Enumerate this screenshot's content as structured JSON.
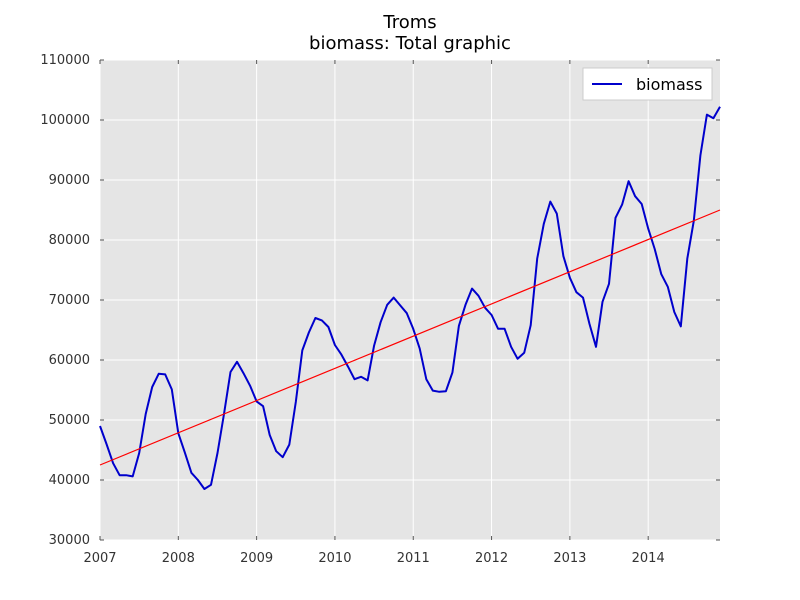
{
  "chart_data": {
    "type": "line",
    "title": "Troms",
    "subtitle": "biomass: Total graphic",
    "xlabel": "",
    "ylabel": "",
    "xlim": [
      2007.0,
      2014.917
    ],
    "ylim": [
      30000,
      110000
    ],
    "grid": true,
    "legend_position": "top-right",
    "x_ticks": [
      "2007",
      "2008",
      "2009",
      "2010",
      "2011",
      "2012",
      "2013",
      "2014"
    ],
    "y_ticks": [
      "30000",
      "40000",
      "50000",
      "60000",
      "70000",
      "80000",
      "90000",
      "100000",
      "110000"
    ],
    "colors": {
      "biomass": "#0000cc",
      "trend": "#ff0000",
      "plot_background": "#e5e5e5",
      "grid": "#ffffff"
    },
    "series": [
      {
        "name": "biomass",
        "x": [
          2007.0,
          2007.083,
          2007.167,
          2007.25,
          2007.333,
          2007.417,
          2007.5,
          2007.583,
          2007.667,
          2007.75,
          2007.833,
          2007.917,
          2008.0,
          2008.083,
          2008.167,
          2008.25,
          2008.333,
          2008.417,
          2008.5,
          2008.583,
          2008.667,
          2008.75,
          2008.833,
          2008.917,
          2009.0,
          2009.083,
          2009.167,
          2009.25,
          2009.333,
          2009.417,
          2009.5,
          2009.583,
          2009.667,
          2009.75,
          2009.833,
          2009.917,
          2010.0,
          2010.083,
          2010.167,
          2010.25,
          2010.333,
          2010.417,
          2010.5,
          2010.583,
          2010.667,
          2010.75,
          2010.833,
          2010.917,
          2011.0,
          2011.083,
          2011.167,
          2011.25,
          2011.333,
          2011.417,
          2011.5,
          2011.583,
          2011.667,
          2011.75,
          2011.833,
          2011.917,
          2012.0,
          2012.083,
          2012.167,
          2012.25,
          2012.333,
          2012.417,
          2012.5,
          2012.583,
          2012.667,
          2012.75,
          2012.833,
          2012.917,
          2013.0,
          2013.083,
          2013.167,
          2013.25,
          2013.333,
          2013.417,
          2013.5,
          2013.583,
          2013.667,
          2013.75,
          2013.833,
          2013.917,
          2014.0,
          2014.083,
          2014.167,
          2014.25,
          2014.333,
          2014.417,
          2014.5,
          2014.583,
          2014.667,
          2014.75,
          2014.833,
          2014.917
        ],
        "values": [
          49000,
          46000,
          42800,
          40800,
          40800,
          40600,
          44500,
          51000,
          55500,
          57700,
          57600,
          55100,
          47800,
          44600,
          41200,
          40000,
          38500,
          39200,
          44500,
          51000,
          58000,
          59700,
          57800,
          55700,
          53100,
          52300,
          47500,
          44800,
          43800,
          45900,
          53000,
          61600,
          64600,
          67000,
          66600,
          65500,
          62500,
          60900,
          58900,
          56800,
          57200,
          56600,
          62400,
          66300,
          69200,
          70400,
          69100,
          67800,
          65200,
          61900,
          56800,
          54900,
          54700,
          54800,
          57900,
          65700,
          69200,
          71900,
          70700,
          68700,
          67500,
          65200,
          65200,
          62200,
          60200,
          61200,
          65800,
          76900,
          82700,
          86400,
          84400,
          77300,
          73700,
          71300,
          70400,
          66000,
          62200,
          69700,
          72700,
          83700,
          85900,
          89800,
          87300,
          86000,
          81900,
          78500,
          74300,
          72200,
          68000,
          65600,
          76900,
          83200,
          94100,
          100900,
          100300,
          102200
        ]
      },
      {
        "name": "trend",
        "x": [
          2007.0,
          2014.917
        ],
        "values": [
          42500,
          85000
        ]
      }
    ]
  }
}
